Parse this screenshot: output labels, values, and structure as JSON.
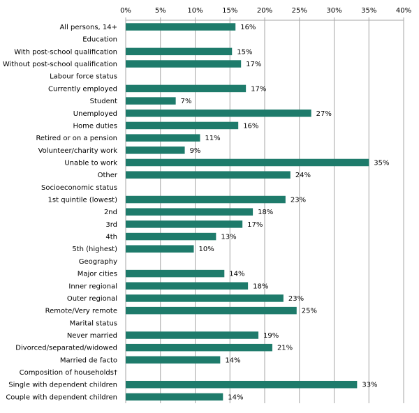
{
  "chart_data": {
    "type": "bar",
    "orientation": "horizontal",
    "title": "",
    "xlabel": "",
    "ylabel": "",
    "xlim": [
      0,
      40
    ],
    "x_ticks": [
      "0%",
      "5%",
      "10%",
      "15%",
      "20%",
      "25%",
      "30%",
      "35%",
      "40%"
    ],
    "x_axis_position": "top",
    "grid": true,
    "legend": "none",
    "bar_color": "#1e7b6b",
    "grid_color": "#a6a6a6",
    "categories": [
      "All persons, 14+",
      "Education",
      "With post-school qualification",
      "Without post-school qualification",
      "Labour force status",
      "Currently employed",
      "Student",
      "Unemployed",
      "Home duties",
      "Retired or on a pension",
      "Volunteer/charity work",
      "Unable to work",
      "Other",
      "Socioeconomic status",
      "1st quintile (lowest)",
      "2nd",
      "3rd",
      "4th",
      "5th (highest)",
      "Geography",
      "Major cities",
      "Inner regional",
      "Outer regional",
      "Remote/Very remote",
      "Marital status",
      "Never married",
      "Divorced/separated/widowed",
      "Married de facto",
      "Composition of households†",
      "Single with dependent children",
      "Couple with dependent children"
    ],
    "values": [
      15.8,
      null,
      15.3,
      16.6,
      null,
      17.3,
      7.2,
      26.7,
      16.2,
      10.7,
      8.5,
      35.0,
      23.7,
      null,
      23.0,
      18.3,
      16.8,
      13.0,
      9.8,
      null,
      14.2,
      17.6,
      22.7,
      24.6,
      null,
      19.1,
      21.1,
      13.6,
      null,
      33.3,
      14.0
    ],
    "labels": [
      "16%",
      "",
      "15%",
      "17%",
      "",
      "17%",
      "7%",
      "27%",
      "16%",
      "11%",
      "9%",
      "35%",
      "24%",
      "",
      "23%",
      "18%",
      "17%",
      "13%",
      "10%",
      "",
      "14%",
      "18%",
      "23%",
      "25%",
      "",
      "19%",
      "21%",
      "14%",
      "",
      "33%",
      "14%"
    ]
  }
}
